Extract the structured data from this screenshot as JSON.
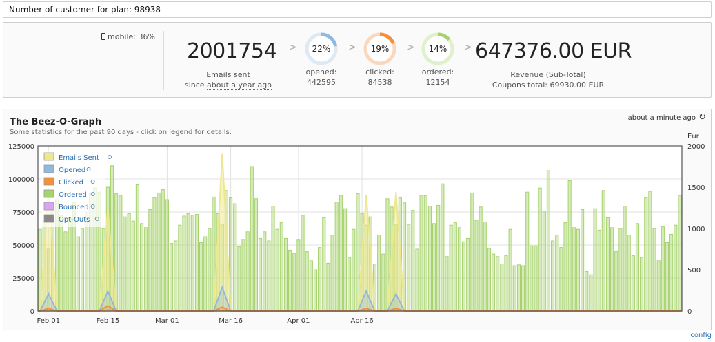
{
  "top_bar": {
    "text": "Number of customer for plan: 98938"
  },
  "stats": {
    "mobile": "mobile: 36%",
    "emails_sent": {
      "value": "2001754",
      "label": "Emails sent",
      "since_prefix": "since",
      "since_link": "about a year ago"
    },
    "opened": {
      "pct": 22,
      "pct_label": "22%",
      "label": "opened:",
      "count": "442595",
      "color": "#8fb9de",
      "track": "#dde9f4"
    },
    "clicked": {
      "pct": 19,
      "pct_label": "19%",
      "label": "clicked:",
      "count": "84538",
      "color": "#f5903a",
      "track": "#f9d8bd"
    },
    "ordered": {
      "pct": 14,
      "pct_label": "14%",
      "label": "ordered:",
      "count": "12154",
      "color": "#a6d36c",
      "track": "#dff0cc"
    },
    "revenue": {
      "value": "647376.00 EUR",
      "label": "Revenue (Sub-Total)",
      "coupons": "Coupons total: 69930.00 EUR"
    },
    "arrow": ">"
  },
  "graph": {
    "title": "The Beez-O-Graph",
    "subtitle": "Some statistics for the past 90 days - click on legend for details.",
    "updated": "about a minute ago",
    "refresh_icon": "refresh-icon",
    "right_axis_unit": "Eur",
    "config": "config",
    "legend": [
      {
        "label": "Emails Sent",
        "color": "#eee78e"
      },
      {
        "label": "Opened",
        "color": "#92b8dd"
      },
      {
        "label": "Clicked",
        "color": "#f5903a"
      },
      {
        "label": "Ordered",
        "color": "#a6d36c"
      },
      {
        "label": "Bounced",
        "color": "#d6a6f0"
      },
      {
        "label": "Opt-Outs",
        "color": "#8a8a8a"
      }
    ]
  },
  "chart_data": {
    "type": "bar",
    "left_axis": {
      "ticks": [
        0,
        25000,
        50000,
        75000,
        100000,
        125000
      ],
      "range": [
        0,
        125000
      ]
    },
    "right_axis": {
      "label": "Eur",
      "ticks": [
        0,
        500,
        1000,
        1500,
        2000
      ],
      "range": [
        0,
        2000
      ]
    },
    "x_ticks": [
      {
        "label": "Feb 01",
        "index": 2
      },
      {
        "label": "Feb 15",
        "index": 16
      },
      {
        "label": "Mar 01",
        "index": 30
      },
      {
        "label": "Mar 16",
        "index": 45
      },
      {
        "label": "Apr 01",
        "index": 61
      },
      {
        "label": "Apr 16",
        "index": 76
      }
    ],
    "grid": true,
    "legend_position": "top-left",
    "series": [
      {
        "name": "Ordered",
        "axis": "right",
        "kind": "bar",
        "values": [
          990,
          1100,
          750,
          1320,
          1350,
          1160,
          960,
          1130,
          1320,
          900,
          1000,
          1190,
          1430,
          1490,
          1440,
          1000,
          1500,
          1760,
          1420,
          1400,
          1140,
          1180,
          1090,
          1530,
          1060,
          1010,
          1230,
          1370,
          1430,
          1470,
          1350,
          820,
          850,
          1040,
          1150,
          1180,
          1160,
          1170,
          830,
          900,
          1000,
          1380,
          1180,
          1050,
          1460,
          1370,
          1300,
          780,
          870,
          960,
          1750,
          1360,
          880,
          960,
          850,
          1270,
          990,
          1070,
          880,
          730,
          700,
          860,
          1160,
          720,
          610,
          500,
          770,
          1130,
          580,
          920,
          1320,
          1400,
          1240,
          650,
          990,
          1420,
          1180,
          1040,
          1140,
          570,
          920,
          690,
          1360,
          1260,
          1050,
          1370,
          1310,
          1050,
          1220,
          750,
          1400,
          1400,
          1270,
          1060,
          1280,
          1540,
          660,
          1040,
          1070,
          1010,
          840,
          880,
          1430,
          1100,
          1260,
          1080,
          760,
          690,
          660,
          570,
          670,
          990,
          550,
          560,
          550,
          1440,
          790,
          790,
          1490,
          1210,
          1700,
          850,
          920,
          770,
          1070,
          1580,
          1010,
          990,
          1230,
          480,
          440,
          1240,
          980,
          1460,
          1130,
          1010,
          720,
          1000,
          1270,
          920,
          670,
          1060,
          650,
          1370,
          1450,
          1000,
          610,
          1020,
          830,
          930,
          1040,
          1400
        ]
      },
      {
        "name": "Emails Sent",
        "axis": "left",
        "kind": "spikes",
        "values": [
          {
            "x": 2,
            "y": 93000
          },
          {
            "x": 16,
            "y": 78000
          },
          {
            "x": 43,
            "y": 119000
          },
          {
            "x": 77,
            "y": 88000
          },
          {
            "x": 84,
            "y": 90000
          }
        ]
      },
      {
        "name": "Opened",
        "axis": "left",
        "kind": "spikes",
        "values": [
          {
            "x": 2,
            "y": 13000
          },
          {
            "x": 16,
            "y": 15000
          },
          {
            "x": 43,
            "y": 18000
          },
          {
            "x": 77,
            "y": 15000
          },
          {
            "x": 84,
            "y": 13000
          }
        ]
      },
      {
        "name": "Clicked",
        "axis": "left",
        "kind": "spikes",
        "values": [
          {
            "x": 2,
            "y": 2000
          },
          {
            "x": 16,
            "y": 4000
          },
          {
            "x": 43,
            "y": 3000
          },
          {
            "x": 77,
            "y": 2000
          },
          {
            "x": 84,
            "y": 2000
          }
        ]
      }
    ]
  }
}
